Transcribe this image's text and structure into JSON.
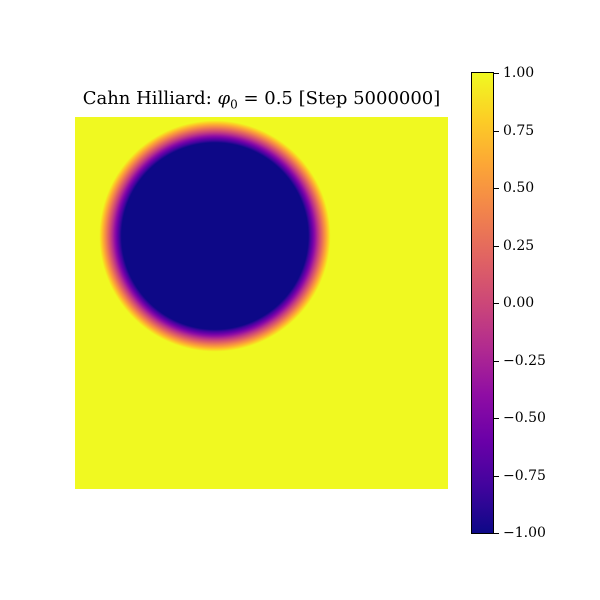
{
  "chart_data": {
    "type": "heatmap",
    "title": {
      "prefix": "Cahn Hilliard: ",
      "phi_symbol": "φ",
      "phi_subscript": "0",
      "suffix": " = 0.5 [Step 5000000]"
    },
    "field_description": {
      "background_value": 1.0,
      "inclusion_shape": "circle",
      "inclusion_value": -1.0,
      "inclusion_center_fraction": [
        0.375,
        0.32
      ],
      "inclusion_radius_fraction": 0.28,
      "interface_width_fraction": 0.03
    },
    "colormap": "plasma",
    "colorbar": {
      "vmin": -1.0,
      "vmax": 1.0,
      "ticks": [
        1.0,
        0.75,
        0.5,
        0.25,
        0.0,
        -0.25,
        -0.5,
        -0.75,
        -1.0
      ],
      "tick_labels": [
        "1.00",
        "0.75",
        "0.50",
        "0.25",
        "0.00",
        "−0.25",
        "−0.50",
        "−0.75",
        "−1.00"
      ]
    },
    "axes_visible": false,
    "grid": false
  },
  "colors": {
    "plasma_low": "#0d0887",
    "plasma_mid": "#cc4778",
    "plasma_high": "#f0f921"
  }
}
